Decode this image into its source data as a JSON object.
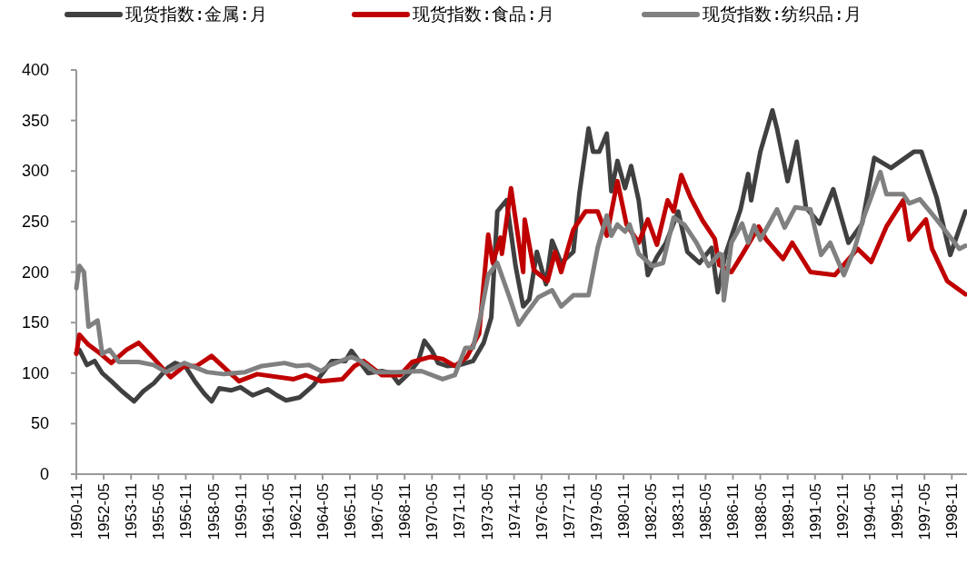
{
  "chart_data": {
    "type": "line",
    "legend": "top",
    "xlim": [
      "1950-11",
      "1999-09"
    ],
    "ylim": [
      0,
      400
    ],
    "yticks": [
      0,
      50,
      100,
      150,
      200,
      250,
      300,
      350,
      400
    ],
    "xticks": [
      "1950-11",
      "1952-05",
      "1953-11",
      "1955-05",
      "1956-11",
      "1958-05",
      "1959-11",
      "1961-05",
      "1962-11",
      "1964-05",
      "1965-11",
      "1967-05",
      "1968-11",
      "1970-05",
      "1971-11",
      "1973-05",
      "1974-11",
      "1976-05",
      "1977-11",
      "1979-05",
      "1980-11",
      "1982-05",
      "1983-11",
      "1985-05",
      "1986-11",
      "1988-05",
      "1989-11",
      "1991-05",
      "1992-11",
      "1994-05",
      "1995-11",
      "1997-05",
      "1998-11"
    ],
    "series": [
      {
        "name": "现货指数:金属:月",
        "color": "#404040",
        "x": [
          "1950-11",
          "1951-01",
          "1951-06",
          "1951-11",
          "1952-04",
          "1952-10",
          "1953-05",
          "1954-01",
          "1954-07",
          "1955-02",
          "1955-11",
          "1956-04",
          "1956-11",
          "1957-05",
          "1957-11",
          "1958-04",
          "1958-09",
          "1959-05",
          "1959-11",
          "1960-07",
          "1961-05",
          "1961-11",
          "1962-05",
          "1963-02",
          "1963-11",
          "1964-05",
          "1964-11",
          "1965-08",
          "1965-12",
          "1966-05",
          "1966-11",
          "1967-08",
          "1968-02",
          "1968-07",
          "1969-02",
          "1969-08",
          "1969-12",
          "1970-05",
          "1970-09",
          "1971-03",
          "1971-11",
          "1972-08",
          "1973-03",
          "1973-08",
          "1973-12",
          "1974-06",
          "1974-12",
          "1975-05",
          "1975-09",
          "1976-02",
          "1976-08",
          "1976-12",
          "1977-06",
          "1978-02",
          "1978-06",
          "1978-12",
          "1979-03",
          "1979-07",
          "1979-12",
          "1980-03",
          "1980-07",
          "1980-12",
          "1981-04",
          "1981-09",
          "1982-03",
          "1982-09",
          "1983-03",
          "1983-11",
          "1984-05",
          "1985-01",
          "1985-09",
          "1986-01",
          "1986-06",
          "1987-04",
          "1987-09",
          "1987-11",
          "1988-05",
          "1989-01",
          "1989-04",
          "1989-11",
          "1990-05",
          "1990-11",
          "1991-08",
          "1992-05",
          "1993-03",
          "1993-12",
          "1994-08",
          "1995-07",
          "1996-10",
          "1997-03",
          "1998-01",
          "1998-10",
          "1999-08"
        ],
        "values": [
          120,
          123,
          108,
          112,
          100,
          92,
          82,
          72,
          82,
          90,
          105,
          110,
          106,
          92,
          80,
          72,
          85,
          83,
          86,
          78,
          84,
          78,
          73,
          76,
          88,
          100,
          112,
          112,
          122,
          112,
          100,
          102,
          100,
          90,
          100,
          112,
          132,
          122,
          110,
          107,
          108,
          112,
          130,
          155,
          260,
          271,
          206,
          166,
          173,
          220,
          188,
          231,
          209,
          220,
          278,
          342,
          319,
          319,
          337,
          280,
          310,
          283,
          305,
          271,
          197,
          215,
          229,
          260,
          220,
          209,
          224,
          180,
          217,
          262,
          297,
          271,
          319,
          360,
          342,
          290,
          329,
          264,
          248,
          282,
          229,
          248,
          313,
          303,
          319,
          319,
          274,
          217,
          260
        ]
      },
      {
        "name": "现货指数:食品:月",
        "color": "#c00000",
        "x": [
          "1950-11",
          "1951-01",
          "1951-07",
          "1952-03",
          "1952-10",
          "1953-08",
          "1954-04",
          "1955-01",
          "1956-01",
          "1956-10",
          "1957-06",
          "1958-04",
          "1959-02",
          "1959-10",
          "1960-10",
          "1962-10",
          "1963-06",
          "1964-04",
          "1965-06",
          "1966-02",
          "1966-08",
          "1967-08",
          "1968-08",
          "1969-04",
          "1970-04",
          "1970-12",
          "1971-08",
          "1972-04",
          "1972-12",
          "1973-06",
          "1973-09",
          "1974-02",
          "1974-03",
          "1974-09",
          "1975-05",
          "1975-06",
          "1975-12",
          "1976-09",
          "1977-02",
          "1977-06",
          "1978-02",
          "1978-10",
          "1979-06",
          "1979-12",
          "1980-07",
          "1981-01",
          "1981-09",
          "1982-03",
          "1982-09",
          "1983-04",
          "1983-08",
          "1984-01",
          "1984-07",
          "1985-03",
          "1985-11",
          "1986-02",
          "1986-10",
          "1987-05",
          "1988-04",
          "1988-09",
          "1989-08",
          "1990-02",
          "1991-02",
          "1992-06",
          "1993-09",
          "1994-06",
          "1995-04",
          "1996-03",
          "1996-07",
          "1997-06",
          "1997-10",
          "1998-08",
          "1999-08"
        ],
        "values": [
          119,
          138,
          128,
          119,
          110,
          123,
          130,
          116,
          96,
          107,
          107,
          117,
          103,
          92,
          99,
          94,
          98,
          92,
          94,
          107,
          112,
          98,
          98,
          111,
          116,
          114,
          107,
          116,
          139,
          237,
          209,
          234,
          218,
          283,
          200,
          252,
          202,
          191,
          220,
          200,
          242,
          260,
          260,
          236,
          290,
          247,
          229,
          252,
          227,
          271,
          260,
          296,
          274,
          251,
          233,
          207,
          200,
          217,
          245,
          232,
          213,
          229,
          200,
          197,
          223,
          210,
          245,
          271,
          232,
          252,
          223,
          191,
          178
        ]
      },
      {
        "name": "现货指数:纺织品:月",
        "color": "#808080",
        "x": [
          "1950-11",
          "1951-01",
          "1951-04",
          "1951-07",
          "1952-01",
          "1952-04",
          "1952-09",
          "1953-03",
          "1954-04",
          "1955-02",
          "1955-10",
          "1956-10",
          "1958-01",
          "1958-12",
          "1960-02",
          "1961-01",
          "1962-04",
          "1962-12",
          "1963-08",
          "1964-04",
          "1964-10",
          "1965-12",
          "1966-06",
          "1967-04",
          "1968-06",
          "1969-10",
          "1970-12",
          "1971-08",
          "1972-03",
          "1972-08",
          "1973-01",
          "1973-06",
          "1973-12",
          "1974-08",
          "1975-02",
          "1975-08",
          "1976-03",
          "1976-12",
          "1977-06",
          "1978-02",
          "1978-12",
          "1979-06",
          "1979-12",
          "1980-03",
          "1980-07",
          "1980-12",
          "1981-03",
          "1981-09",
          "1982-06",
          "1983-01",
          "1983-08",
          "1984-03",
          "1984-11",
          "1985-07",
          "1986-02",
          "1986-04",
          "1986-05",
          "1986-10",
          "1987-05",
          "1987-09",
          "1988-01",
          "1988-05",
          "1989-04",
          "1989-09",
          "1990-04",
          "1991-02",
          "1991-09",
          "1992-03",
          "1992-12",
          "1993-07",
          "1994-01",
          "1994-12",
          "1995-04",
          "1996-03",
          "1996-07",
          "1997-02",
          "1998-01",
          "1999-04",
          "1999-08"
        ],
        "values": [
          184,
          206,
          200,
          146,
          152,
          119,
          123,
          111,
          111,
          108,
          101,
          110,
          101,
          99,
          101,
          107,
          110,
          107,
          108,
          102,
          108,
          116,
          112,
          101,
          101,
          102,
          94,
          98,
          125,
          125,
          157,
          197,
          209,
          175,
          148,
          161,
          175,
          182,
          166,
          177,
          177,
          224,
          256,
          236,
          247,
          240,
          247,
          218,
          206,
          209,
          254,
          247,
          229,
          206,
          218,
          217,
          172,
          229,
          248,
          229,
          246,
          232,
          262,
          244,
          264,
          262,
          217,
          229,
          197,
          223,
          254,
          299,
          277,
          277,
          268,
          272,
          252,
          223,
          226
        ]
      }
    ]
  }
}
